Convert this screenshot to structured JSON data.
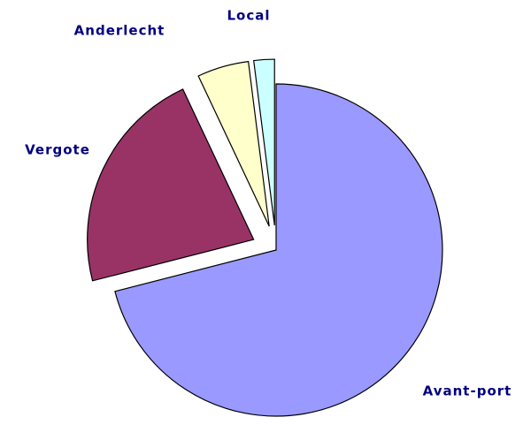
{
  "chart_data": {
    "type": "pie",
    "categories": [
      "Avant-port",
      "Vergote",
      "Anderlecht",
      "Local"
    ],
    "values": [
      71,
      22,
      5,
      2
    ],
    "colors": [
      "#9999ff",
      "#993366",
      "#ffffcc",
      "#ccffff"
    ]
  }
}
